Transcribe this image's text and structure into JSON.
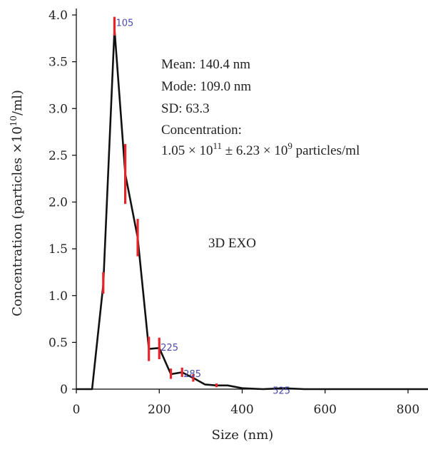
{
  "chart_data": {
    "type": "line",
    "xlabel": "Size (nm)",
    "ylabel": "Concentration (particles ×10",
    "ylabel_sup": "10",
    "ylabel_end": "/ml)",
    "xlim": [
      0,
      850
    ],
    "ylim": [
      0,
      4.1
    ],
    "x_ticks": [
      "0",
      "200",
      "400",
      "600",
      "800"
    ],
    "y_ticks": [
      "0",
      "0.5",
      "1.0",
      "1.5",
      "2.0",
      "2.5",
      "3.0",
      "3.5",
      "4.0"
    ],
    "grid": false,
    "series": [
      {
        "x": [
          0,
          38,
          65,
          92,
          118,
          148,
          175,
          200,
          228,
          255,
          282,
          310,
          338,
          365,
          400,
          450,
          500,
          550,
          600,
          700,
          850
        ],
        "y": [
          0,
          0,
          1.12,
          3.85,
          2.3,
          1.62,
          0.43,
          0.44,
          0.16,
          0.18,
          0.12,
          0.05,
          0.04,
          0.04,
          0.01,
          0,
          0.01,
          0,
          0,
          0,
          0
        ]
      }
    ],
    "error_bars": [
      {
        "x": 65,
        "low": 1.02,
        "high": 1.25
      },
      {
        "x": 92,
        "low": 3.78,
        "high": 3.98
      },
      {
        "x": 118,
        "low": 1.98,
        "high": 2.62
      },
      {
        "x": 148,
        "low": 1.42,
        "high": 1.82
      },
      {
        "x": 175,
        "low": 0.3,
        "high": 0.56
      },
      {
        "x": 200,
        "low": 0.32,
        "high": 0.55
      },
      {
        "x": 228,
        "low": 0.11,
        "high": 0.22
      },
      {
        "x": 255,
        "low": 0.13,
        "high": 0.23
      },
      {
        "x": 282,
        "low": 0.08,
        "high": 0.16
      },
      {
        "x": 338,
        "low": 0.02,
        "high": 0.06
      }
    ],
    "peak_labels": [
      {
        "x": 92,
        "y": 3.95,
        "text": "105"
      },
      {
        "x": 200,
        "y": 0.48,
        "text": "225"
      },
      {
        "x": 255,
        "y": 0.2,
        "text": "285"
      },
      {
        "x": 470,
        "y": 0.02,
        "text": "525"
      }
    ],
    "annotations": {
      "mean": "Mean: 140.4 nm",
      "mode": "Mode: 109.0 nm",
      "sd": "SD: 63.3",
      "concentration_label": "Concentration:",
      "concentration_value_a": "1.05 × 10",
      "concentration_exp_a": "11",
      "concentration_value_b": " ± 6.23 × 10",
      "concentration_exp_b": "9",
      "concentration_value_c": " particles/ml",
      "sample_label": "3D EXO"
    }
  }
}
